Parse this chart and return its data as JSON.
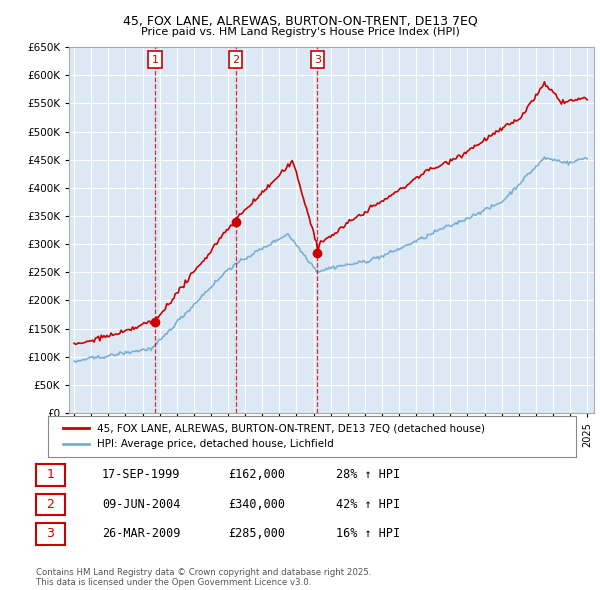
{
  "title": "45, FOX LANE, ALREWAS, BURTON-ON-TRENT, DE13 7EQ",
  "subtitle": "Price paid vs. HM Land Registry's House Price Index (HPI)",
  "ylim": [
    0,
    650000
  ],
  "yticks": [
    0,
    50000,
    100000,
    150000,
    200000,
    250000,
    300000,
    350000,
    400000,
    450000,
    500000,
    550000,
    600000,
    650000
  ],
  "xlim_start": 1994.7,
  "xlim_end": 2025.4,
  "legend_line1": "45, FOX LANE, ALREWAS, BURTON-ON-TRENT, DE13 7EQ (detached house)",
  "legend_line2": "HPI: Average price, detached house, Lichfield",
  "red_color": "#cc0000",
  "blue_color": "#7bafd4",
  "plot_bg_color": "#dce9f5",
  "transaction_color": "#cc0000",
  "transactions": [
    {
      "label": "1",
      "date": 1999.72,
      "price": 162000,
      "pct": "28%",
      "date_str": "17-SEP-1999"
    },
    {
      "label": "2",
      "date": 2004.44,
      "price": 340000,
      "pct": "42%",
      "date_str": "09-JUN-2004"
    },
    {
      "label": "3",
      "date": 2009.23,
      "price": 285000,
      "pct": "16%",
      "date_str": "26-MAR-2009"
    }
  ],
  "footer": "Contains HM Land Registry data © Crown copyright and database right 2025.\nThis data is licensed under the Open Government Licence v3.0."
}
